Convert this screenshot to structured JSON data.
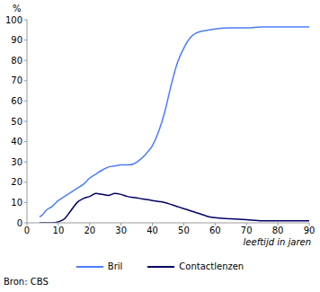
{
  "chart_data": {
    "type": "line",
    "ylabel": "%",
    "xlabel": "leeftijd in jaren",
    "source": "Bron: CBS",
    "x": [
      4,
      5,
      6,
      8,
      10,
      12,
      14,
      16,
      18,
      20,
      22,
      24,
      26,
      28,
      30,
      32,
      34,
      36,
      38,
      40,
      42,
      44,
      46,
      48,
      50,
      52,
      54,
      56,
      58,
      60,
      65,
      70,
      75,
      80,
      85,
      90
    ],
    "series": [
      {
        "name": "Bril",
        "color": "#4d7cff",
        "values": [
          3,
          4,
          6,
          8,
          11,
          13,
          15,
          17,
          19,
          22,
          24,
          26,
          27.5,
          28,
          28.5,
          28.5,
          29,
          31,
          34,
          38,
          45,
          55,
          68,
          79,
          86,
          91,
          93.5,
          94.5,
          95,
          95.5,
          96,
          96,
          96.5,
          96.5,
          96.5,
          96.5
        ]
      },
      {
        "name": "Contactlenzen",
        "color": "#000066",
        "values": [
          0,
          0,
          0,
          0,
          0.5,
          2,
          6,
          10,
          12,
          13,
          14.5,
          14,
          13.5,
          14.5,
          14,
          13,
          12.5,
          12,
          11.5,
          11,
          10.5,
          10,
          9,
          8,
          7,
          6,
          5,
          4,
          3,
          2.5,
          2,
          1.5,
          1,
          1,
          1,
          1
        ]
      }
    ],
    "xlim": [
      0,
      90
    ],
    "ylim": [
      0,
      100
    ],
    "xticks": [
      0,
      10,
      20,
      30,
      40,
      50,
      60,
      70,
      80,
      90
    ],
    "yticks": [
      0,
      10,
      20,
      30,
      40,
      50,
      60,
      70,
      80,
      90,
      100
    ],
    "grid": false,
    "legend": "bottom"
  }
}
